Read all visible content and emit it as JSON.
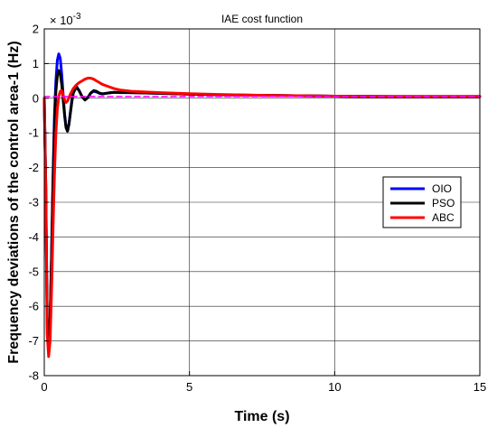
{
  "chart_data": {
    "type": "line",
    "title": "IAE cost function",
    "xlabel": "Time (s)",
    "ylabel": "Frequency deviations of the control area-1 (Hz)",
    "exponent_label": "× 10",
    "exponent_power": "-3",
    "xlim": [
      0,
      15
    ],
    "ylim": [
      -8,
      2
    ],
    "x_ticks": [
      0,
      5,
      10,
      15
    ],
    "y_ticks": [
      -8,
      -7,
      -6,
      -5,
      -4,
      -3,
      -2,
      -1,
      0,
      1,
      2
    ],
    "grid": true,
    "legend_position": "right",
    "series": [
      {
        "name": "OIO",
        "color": "#0000ff",
        "x": [
          0,
          0.05,
          0.1,
          0.15,
          0.2,
          0.25,
          0.3,
          0.35,
          0.4,
          0.45,
          0.5,
          0.55,
          0.6,
          0.65,
          0.7,
          0.75,
          0.8,
          0.85,
          0.9,
          0.95,
          1.0,
          1.1,
          1.2,
          1.3,
          1.4,
          1.5,
          1.6,
          1.7,
          1.8,
          1.9,
          2.0,
          2.2,
          2.4,
          2.6,
          3.0,
          3.5,
          4.0,
          5.0,
          6.0,
          7.0,
          8.0,
          10.0,
          12.0,
          15.0
        ],
        "y": [
          0,
          -2.5,
          -6.5,
          -7.3,
          -6.5,
          -4.5,
          -2.3,
          -0.5,
          0.5,
          1.1,
          1.28,
          1.15,
          0.7,
          0.1,
          -0.45,
          -0.85,
          -0.95,
          -0.75,
          -0.4,
          -0.05,
          0.2,
          0.35,
          0.22,
          0.05,
          -0.05,
          0.02,
          0.15,
          0.2,
          0.18,
          0.14,
          0.12,
          0.15,
          0.17,
          0.16,
          0.16,
          0.15,
          0.14,
          0.12,
          0.1,
          0.09,
          0.08,
          0.06,
          0.05,
          0.05
        ]
      },
      {
        "name": "PSO",
        "color": "#000000",
        "x": [
          0,
          0.05,
          0.1,
          0.15,
          0.2,
          0.25,
          0.3,
          0.35,
          0.4,
          0.45,
          0.5,
          0.55,
          0.6,
          0.65,
          0.7,
          0.75,
          0.8,
          0.85,
          0.9,
          0.95,
          1.0,
          1.1,
          1.2,
          1.3,
          1.4,
          1.5,
          1.6,
          1.7,
          1.8,
          1.9,
          2.0,
          2.2,
          2.4,
          2.6,
          3.0,
          3.5,
          4.0,
          5.0,
          6.0,
          7.0,
          8.0,
          10.0,
          12.0,
          15.0
        ],
        "y": [
          0,
          -2.4,
          -6.3,
          -7.2,
          -6.4,
          -4.6,
          -2.5,
          -0.8,
          0.2,
          0.65,
          0.8,
          0.7,
          0.4,
          -0.05,
          -0.5,
          -0.85,
          -0.95,
          -0.75,
          -0.42,
          -0.1,
          0.15,
          0.32,
          0.22,
          0.05,
          -0.05,
          0.02,
          0.15,
          0.22,
          0.2,
          0.15,
          0.13,
          0.15,
          0.17,
          0.17,
          0.16,
          0.15,
          0.14,
          0.12,
          0.1,
          0.09,
          0.08,
          0.06,
          0.05,
          0.05
        ]
      },
      {
        "name": "ABC",
        "color": "#ff0000",
        "x": [
          0,
          0.05,
          0.1,
          0.15,
          0.2,
          0.25,
          0.3,
          0.35,
          0.4,
          0.45,
          0.5,
          0.55,
          0.6,
          0.65,
          0.7,
          0.75,
          0.8,
          0.85,
          0.9,
          0.95,
          1.0,
          1.1,
          1.2,
          1.3,
          1.4,
          1.5,
          1.6,
          1.7,
          1.8,
          1.9,
          2.0,
          2.2,
          2.4,
          2.6,
          3.0,
          3.5,
          4.0,
          5.0,
          6.0,
          7.0,
          8.0,
          10.0,
          12.0,
          15.0
        ],
        "y": [
          0,
          -2.6,
          -6.8,
          -7.45,
          -7.0,
          -5.6,
          -3.8,
          -2.2,
          -1.0,
          -0.3,
          0.05,
          0.2,
          0.22,
          0.1,
          -0.05,
          -0.12,
          -0.08,
          0.02,
          0.12,
          0.2,
          0.28,
          0.38,
          0.45,
          0.5,
          0.55,
          0.58,
          0.58,
          0.55,
          0.5,
          0.45,
          0.4,
          0.34,
          0.28,
          0.24,
          0.2,
          0.18,
          0.16,
          0.13,
          0.11,
          0.09,
          0.08,
          0.06,
          0.05,
          0.05
        ]
      },
      {
        "name": "",
        "color": "#ff00ff",
        "dashed": true,
        "x": [
          0,
          15
        ],
        "y": [
          0.05,
          0.05
        ]
      }
    ],
    "legend": [
      "OIO",
      "PSO",
      "ABC"
    ]
  }
}
